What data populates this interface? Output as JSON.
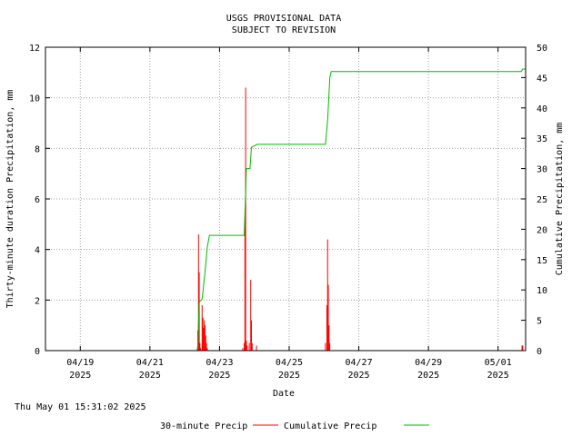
{
  "chart_data": {
    "type": "bar+line",
    "title": [
      "USGS PROVISIONAL DATA",
      "SUBJECT TO REVISION"
    ],
    "xlabel": "Date",
    "ylabel_left": "Thirty-minute duration Precipitation, mm",
    "ylabel_right": "Cumulative Precipitation, mm",
    "x_range_days": [
      "2025-04-18T00:00",
      "2025-05-01T19:00"
    ],
    "ylim_left": [
      0,
      12
    ],
    "ylim_right": [
      0,
      50
    ],
    "yticks_left": [
      "0",
      "2",
      "4",
      "6",
      "8",
      "10",
      "12"
    ],
    "yticks_right": [
      "0",
      "5",
      "10",
      "15",
      "20",
      "25",
      "30",
      "35",
      "40",
      "45",
      "50"
    ],
    "xticks": [
      {
        "date": "2025-04-19",
        "line1": "04/19",
        "line2": "2025"
      },
      {
        "date": "2025-04-21",
        "line1": "04/21",
        "line2": "2025"
      },
      {
        "date": "2025-04-23",
        "line1": "04/23",
        "line2": "2025"
      },
      {
        "date": "2025-04-25",
        "line1": "04/25",
        "line2": "2025"
      },
      {
        "date": "2025-04-27",
        "line1": "04/27",
        "line2": "2025"
      },
      {
        "date": "2025-04-29",
        "line1": "04/29",
        "line2": "2025"
      },
      {
        "date": "2025-05-01",
        "line1": "05/01",
        "line2": "2025"
      }
    ],
    "grid": true,
    "legend_placement": "bottom",
    "colors": {
      "precip_30min": "#ff0000",
      "cumulative": "#00bb00"
    },
    "series": [
      {
        "name": "30-minute Precip",
        "kind": "impulse",
        "axis": "left",
        "points": [
          [
            "2025-04-22T09:00",
            0.8
          ],
          [
            "2025-04-22T09:30",
            4.6
          ],
          [
            "2025-04-22T10:00",
            3.1
          ],
          [
            "2025-04-22T10:30",
            0.3
          ],
          [
            "2025-04-22T11:00",
            0.1
          ],
          [
            "2025-04-22T12:00",
            1.8
          ],
          [
            "2025-04-22T12:30",
            1.3
          ],
          [
            "2025-04-22T13:00",
            0.9
          ],
          [
            "2025-04-22T13:30",
            1.2
          ],
          [
            "2025-04-22T14:00",
            1.0
          ],
          [
            "2025-04-22T14:30",
            0.6
          ],
          [
            "2025-04-22T15:00",
            0.3
          ],
          [
            "2025-04-22T15:30",
            0.1
          ],
          [
            "2025-04-23T16:00",
            0.1
          ],
          [
            "2025-04-23T17:00",
            0.3
          ],
          [
            "2025-04-23T17:30",
            5.3
          ],
          [
            "2025-04-23T18:00",
            10.4
          ],
          [
            "2025-04-23T18:30",
            0.4
          ],
          [
            "2025-04-23T19:00",
            0.2
          ],
          [
            "2025-04-23T20:30",
            0.3
          ],
          [
            "2025-04-23T21:30",
            2.8
          ],
          [
            "2025-04-23T22:00",
            1.2
          ],
          [
            "2025-04-23T22:30",
            0.3
          ],
          [
            "2025-04-24T01:30",
            0.2
          ],
          [
            "2025-04-26T01:00",
            0.3
          ],
          [
            "2025-04-26T02:00",
            1.8
          ],
          [
            "2025-04-26T02:30",
            4.4
          ],
          [
            "2025-04-26T03:00",
            2.6
          ],
          [
            "2025-04-26T03:30",
            1.0
          ],
          [
            "2025-04-26T04:00",
            0.3
          ],
          [
            "2025-05-01T16:30",
            0.2
          ],
          [
            "2025-05-01T17:00",
            0.2
          ]
        ]
      },
      {
        "name": "Cumulative Precip",
        "kind": "line",
        "axis": "right",
        "points": [
          [
            "2025-04-22T08:30",
            0.0
          ],
          [
            "2025-04-22T09:00",
            0.8
          ],
          [
            "2025-04-22T10:00",
            8.0
          ],
          [
            "2025-04-22T12:00",
            8.5
          ],
          [
            "2025-04-22T14:00",
            13.0
          ],
          [
            "2025-04-22T15:30",
            17.0
          ],
          [
            "2025-04-22T17:00",
            19.0
          ],
          [
            "2025-04-23T17:00",
            19.0
          ],
          [
            "2025-04-23T18:00",
            26.0
          ],
          [
            "2025-04-23T18:30",
            30.0
          ],
          [
            "2025-04-23T21:00",
            30.0
          ],
          [
            "2025-04-23T22:00",
            33.5
          ],
          [
            "2025-04-24T02:00",
            34.0
          ],
          [
            "2025-04-26T01:00",
            34.0
          ],
          [
            "2025-04-26T02:30",
            38.0
          ],
          [
            "2025-04-26T04:00",
            45.0
          ],
          [
            "2025-04-26T05:00",
            46.0
          ],
          [
            "2025-05-01T16:00",
            46.0
          ],
          [
            "2025-05-01T17:00",
            46.4
          ],
          [
            "2025-05-01T19:00",
            46.4
          ]
        ]
      }
    ]
  },
  "footer": {
    "timestamp": "Thu May 01 15:31:02 2025",
    "legend": [
      {
        "label": "30-minute Precip",
        "color": "#ff0000"
      },
      {
        "label": "Cumulative Precip",
        "color": "#00bb00"
      }
    ]
  }
}
